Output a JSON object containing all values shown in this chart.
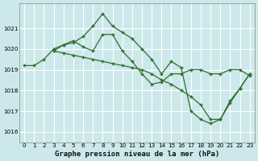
{
  "background_color": "#cce8eb",
  "grid_color": "#ffffff",
  "line_color": "#2d6e2d",
  "title": "Graphe pression niveau de la mer (hPa)",
  "title_fontsize": 6.5,
  "ylim": [
    1015.5,
    1022.2
  ],
  "xlim": [
    -0.5,
    23.5
  ],
  "yticks": [
    1016,
    1017,
    1018,
    1019,
    1020,
    1021
  ],
  "xticks": [
    0,
    1,
    2,
    3,
    4,
    5,
    6,
    7,
    8,
    9,
    10,
    11,
    12,
    13,
    14,
    15,
    16,
    17,
    18,
    19,
    20,
    21,
    22,
    23
  ],
  "line1_x": [
    0,
    1,
    2,
    3,
    4,
    5,
    6,
    7,
    8,
    9,
    10,
    11,
    12,
    13,
    14,
    15,
    16,
    17,
    18,
    19,
    20,
    21,
    22,
    23
  ],
  "line1_y": [
    1019.2,
    1019.2,
    1019.5,
    1020.0,
    1020.2,
    1020.3,
    1020.6,
    1021.1,
    1021.7,
    1021.1,
    1020.8,
    1020.5,
    1020.0,
    1019.5,
    1018.8,
    1019.4,
    1019.1,
    1017.0,
    1016.6,
    1016.4,
    1016.6,
    1017.5,
    1018.1,
    1018.8
  ],
  "line2_x": [
    3,
    4,
    5,
    6,
    7,
    8,
    9,
    10,
    11,
    12,
    13,
    14,
    15,
    16,
    17,
    18,
    19,
    20,
    21,
    22,
    23
  ],
  "line2_y": [
    1019.9,
    1020.2,
    1020.4,
    1020.1,
    1019.9,
    1020.7,
    1020.7,
    1019.9,
    1019.4,
    1018.8,
    1018.3,
    1018.4,
    1018.8,
    1018.8,
    1019.0,
    1019.0,
    1018.8,
    1018.8,
    1019.0,
    1019.0,
    1018.7
  ],
  "line3_x": [
    3,
    4,
    5,
    6,
    7,
    8,
    9,
    10,
    11,
    12,
    13,
    14,
    15,
    16,
    17,
    18,
    19,
    20,
    21,
    22,
    23
  ],
  "line3_y": [
    1019.9,
    1019.8,
    1019.7,
    1019.6,
    1019.5,
    1019.4,
    1019.3,
    1019.2,
    1019.1,
    1019.0,
    1018.8,
    1018.5,
    1018.3,
    1018.0,
    1017.7,
    1017.3,
    1016.6,
    1016.6,
    1017.4,
    1018.1,
    1018.8
  ]
}
